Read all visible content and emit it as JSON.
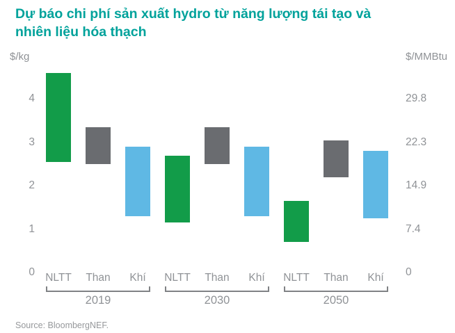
{
  "title": {
    "line1": "Dự báo chi phí sản xuất hydro từ năng lượng tái tạo và",
    "line2": "nhiên liệu hóa thạch"
  },
  "source": "Source: BloombergNEF.",
  "colors": {
    "title": "#00A29B",
    "green": "#129C49",
    "gray": "#6A6C70",
    "blue": "#5FB8E4",
    "axis_text": "#8F9296",
    "bracket": "#808285"
  },
  "chart_data": {
    "type": "bar",
    "subtype": "floating-range-bars",
    "title": "Dự báo chi phí sản xuất hydro từ năng lượng tái tạo và nhiên liệu hóa thạch",
    "left_axis": {
      "unit": "$/kg",
      "ticks": [
        {
          "label": "4",
          "value": 4
        },
        {
          "label": "3",
          "value": 3
        },
        {
          "label": "2",
          "value": 2
        },
        {
          "label": "1",
          "value": 1
        },
        {
          "label": "0",
          "value": 0
        }
      ]
    },
    "right_axis": {
      "unit": "$/MMBtu",
      "ticks": [
        {
          "label": "29.8",
          "value": 4
        },
        {
          "label": "22.3",
          "value": 3
        },
        {
          "label": "14.9",
          "value": 2
        },
        {
          "label": "7.4",
          "value": 1
        },
        {
          "label": "0",
          "value": 0
        }
      ]
    },
    "ylim": [
      0,
      4.75
    ],
    "grid": false,
    "legend": false,
    "series_colors": {
      "NLTT": "green",
      "Than": "gray",
      "Khí": "blue"
    },
    "groups": [
      {
        "year": "2019",
        "bars": [
          {
            "category": "NLTT",
            "low": 2.55,
            "high": 4.6
          },
          {
            "category": "Than",
            "low": 2.5,
            "high": 3.35
          },
          {
            "category": "Khí",
            "low": 1.3,
            "high": 2.9
          }
        ]
      },
      {
        "year": "2030",
        "bars": [
          {
            "category": "NLTT",
            "low": 1.15,
            "high": 2.7
          },
          {
            "category": "Than",
            "low": 2.5,
            "high": 3.35
          },
          {
            "category": "Khí",
            "low": 1.3,
            "high": 2.9
          }
        ]
      },
      {
        "year": "2050",
        "bars": [
          {
            "category": "NLTT",
            "low": 0.7,
            "high": 1.65
          },
          {
            "category": "Than",
            "low": 2.2,
            "high": 3.05
          },
          {
            "category": "Khí",
            "low": 1.25,
            "high": 2.8
          }
        ]
      }
    ]
  }
}
